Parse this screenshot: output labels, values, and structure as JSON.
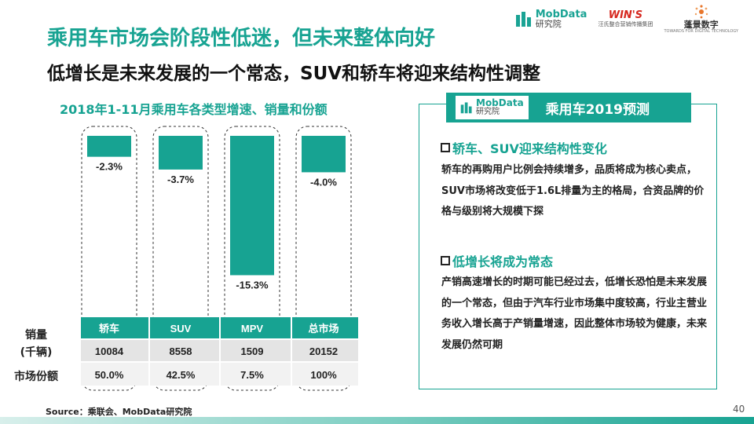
{
  "header": {
    "title": "乘用车市场会阶段性低迷，但未来整体向好",
    "subtitle": "低增长是未来发展的一个常态，SUV和轿车将迎来结构性调整",
    "logos": {
      "mobdata": "MobData",
      "mobdata_sub": "研究院",
      "wins": "WIN'S",
      "wins_sub": "汪氏整合营销传播集团",
      "pengjing": "蓬景数字",
      "pengjing_sub": "TOWARDS FOR DIGITAL TECHNOLOGY"
    }
  },
  "chart_data": {
    "type": "bar",
    "title": "2018年1-11月乘用车各类型增速、销量和份额",
    "categories": [
      "轿车",
      "SUV",
      "MPV",
      "总市场"
    ],
    "series": [
      {
        "values": [
          -2.3,
          -3.7,
          -15.3,
          -4.0
        ]
      }
    ],
    "value_labels": [
      "-2.3%",
      "-3.7%",
      "-15.3%",
      "-4.0%"
    ],
    "ylim": [
      -16,
      0
    ],
    "table": {
      "row_labels": [
        "销量\n(千辆)",
        "市场份额"
      ],
      "sales_label_line1": "销量",
      "sales_label_line2": "(千辆)",
      "share_label": "市场份额",
      "sales": [
        "10084",
        "8558",
        "1509",
        "20152"
      ],
      "share": [
        "50.0%",
        "42.5%",
        "7.5%",
        "100%"
      ]
    },
    "colors": {
      "bar": "#17a392",
      "header": "#17a392"
    }
  },
  "panel": {
    "mobdata": "MobData",
    "mobdata_sub": "研究院",
    "title": "乘用车2019预测",
    "sections": [
      {
        "heading": "轿车、SUV迎来结构性变化",
        "body": "轿车的再购用户比例会持续增多，品质将成为核心卖点，SUV市场将改变低于1.6L排量为主的格局，合资品牌的价格与级别将大规模下探"
      },
      {
        "heading": "低增长将成为常态",
        "body": "产销高速增长的时期可能已经过去，低增长恐怕是未来发展的一个常态，但由于汽车行业市场集中度较高，行业主营业务收入增长高于产销量增速，因此整体市场较为健康，未来发展仍然可期"
      }
    ]
  },
  "footer": {
    "source": "Source：乘联会、MobData研究院",
    "page": "40"
  },
  "colors": {
    "accent": "#17a392"
  }
}
